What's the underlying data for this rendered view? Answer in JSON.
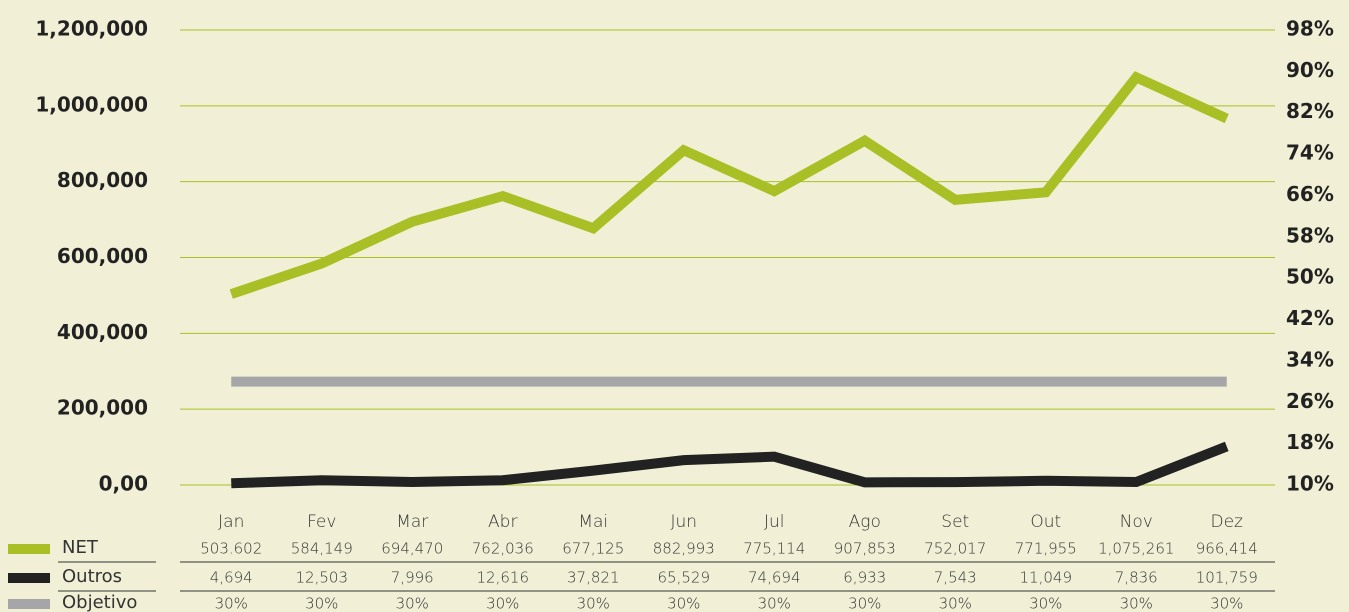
{
  "chart_data": {
    "type": "line",
    "categories": [
      "Jan",
      "Fev",
      "Mar",
      "Abr",
      "Mai",
      "Jun",
      "Jul",
      "Ago",
      "Set",
      "Out",
      "Nov",
      "Dez"
    ],
    "series": [
      {
        "name": "NET",
        "color": "#a8bf26",
        "values": [
          503602,
          584149,
          694470,
          762036,
          677125,
          882993,
          775114,
          907853,
          752017,
          771955,
          1075261,
          966414
        ],
        "value_labels": [
          "503.602",
          "584,149",
          "694,470",
          "762,036",
          "677,125",
          "882,993",
          "775,114",
          "907,853",
          "752,017",
          "771,955",
          "1,075,261",
          "966,414"
        ]
      },
      {
        "name": "Outros",
        "color": "#222222",
        "values": [
          4694,
          12503,
          7996,
          12616,
          37821,
          65529,
          74694,
          6933,
          7543,
          11049,
          7836,
          101759
        ],
        "value_labels": [
          "4,694",
          "12,503",
          "7,996",
          "12,616",
          "37,821",
          "65,529",
          "74,694",
          "6,933",
          "7,543",
          "11,049",
          "7,836",
          "101,759"
        ]
      },
      {
        "name": "Objetivo",
        "color": "#a6a6a8",
        "axis": "y2",
        "values": [
          30,
          30,
          30,
          30,
          30,
          30,
          30,
          30,
          30,
          30,
          30,
          30
        ],
        "value_labels": [
          "30%",
          "30%",
          "30%",
          "30%",
          "30%",
          "30%",
          "30%",
          "30%",
          "30%",
          "30%",
          "30%",
          "30%"
        ]
      }
    ],
    "ylim": [
      0,
      1200000
    ],
    "yticks": [
      {
        "value": 0,
        "label": "0,00"
      },
      {
        "value": 200000,
        "label": "200,000"
      },
      {
        "value": 400000,
        "label": "400,000"
      },
      {
        "value": 600000,
        "label": "600,000"
      },
      {
        "value": 800000,
        "label": "800,000"
      },
      {
        "value": 1000000,
        "label": "1,000,000"
      },
      {
        "value": 1200000,
        "label": "1,200,000"
      }
    ],
    "y2lim": [
      10,
      98
    ],
    "y2ticks": [
      {
        "value": 10,
        "label": "10%"
      },
      {
        "value": 18,
        "label": "18%"
      },
      {
        "value": 26,
        "label": "26%"
      },
      {
        "value": 34,
        "label": "34%"
      },
      {
        "value": 42,
        "label": "42%"
      },
      {
        "value": 50,
        "label": "50%"
      },
      {
        "value": 58,
        "label": "58%"
      },
      {
        "value": 66,
        "label": "66%"
      },
      {
        "value": 74,
        "label": "74%"
      },
      {
        "value": 82,
        "label": "82%"
      },
      {
        "value": 90,
        "label": "90%"
      },
      {
        "value": 98,
        "label": "98%"
      }
    ],
    "grid": true
  }
}
